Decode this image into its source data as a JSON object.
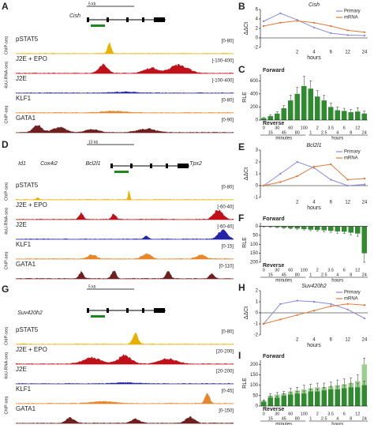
{
  "panels": [
    {
      "label": "A",
      "scale": "5 kb",
      "genes": [
        "Cish"
      ],
      "assays": [
        "ChIP-seq",
        "4sU-RNA-seq",
        "ChIP-seq"
      ],
      "tracks": [
        {
          "name": "pSTAT5",
          "range": "[0-80]",
          "color": "#e8b100"
        },
        {
          "name": "J2E + EPO",
          "range": "[-100-400]",
          "color": "#c0101a"
        },
        {
          "name": "J2E",
          "range": "[-100-400]",
          "color": "#2424a8"
        },
        {
          "name": "KLF1",
          "range": "[0-80]",
          "color": "#e8862a"
        },
        {
          "name": "GATA1",
          "range": "[0-90]",
          "color": "#6e2020"
        }
      ]
    },
    {
      "label": "D",
      "scale": "10 kb",
      "genes": [
        "Id1",
        "Cox4i2",
        "Bcl2l1",
        "Tpx2"
      ],
      "assays": [
        "ChIP-seq",
        "4sU-RNA-seq",
        "ChIP-seq"
      ],
      "tracks": [
        {
          "name": "pSTAT5",
          "range": "[0-80]",
          "color": "#e8b100"
        },
        {
          "name": "J2E + EPO",
          "range": "[-60-40]",
          "color": "#c0101a"
        },
        {
          "name": "J2E",
          "range": "[-60-40]",
          "color": "#2424a8"
        },
        {
          "name": "KLF1",
          "range": "[0-15]",
          "color": "#e8862a"
        },
        {
          "name": "GATA1",
          "range": "[0-110]",
          "color": "#6e2020"
        }
      ]
    },
    {
      "label": "G",
      "scale": "5 kb",
      "genes": [
        "Suv420h2"
      ],
      "assays": [
        "ChIP-seq",
        "4sU-RNA-seq",
        "ChIP-seq"
      ],
      "tracks": [
        {
          "name": "pSTAT5",
          "range": "[0-80]",
          "color": "#e8b100"
        },
        {
          "name": "J2E + EPO",
          "range": "[20-200]",
          "color": "#c0101a"
        },
        {
          "name": "J2E",
          "range": "[20-200]",
          "color": "#2424a8"
        },
        {
          "name": "KLF1",
          "range": "[0-45]",
          "color": "#e8862a"
        },
        {
          "name": "GATA1",
          "range": "[0-150]",
          "color": "#6e2020"
        }
      ]
    }
  ],
  "chart_data": [
    {
      "type": "line",
      "label": "B",
      "title": "Cish",
      "x_label": "hours",
      "y_label": "ΔΔCt",
      "categories": [
        null,
        null,
        "2",
        "4",
        "6",
        "12",
        "24"
      ],
      "series": [
        {
          "name": "Primary",
          "color": "#8a8ae0",
          "values": [
            3.5,
            5.2,
            3.8,
            2.2,
            1.0,
            0.6,
            0.5
          ]
        },
        {
          "name": "mRNA",
          "color": "#e07a3a",
          "values": [
            2.5,
            3.2,
            3.6,
            3.2,
            2.5,
            1.6,
            1.2
          ]
        }
      ],
      "ylim": [
        -2,
        6
      ],
      "yticks": [
        -2,
        0,
        2,
        4,
        6
      ],
      "legend": "upper right"
    },
    {
      "type": "bar",
      "label": "C",
      "forward": "Forward",
      "reverse": "Reverse",
      "y_label": "RLE",
      "group_labels": [
        "minutes",
        "hours"
      ],
      "categories": [
        "0",
        "15",
        "30",
        "45",
        "60",
        "80",
        "100",
        "1",
        "2",
        "2.5",
        "3.5",
        "4",
        "6",
        "8",
        "12",
        "24"
      ],
      "series": [
        {
          "name": null,
          "color": "#2e8b2e",
          "values": [
            30,
            60,
            100,
            180,
            300,
            400,
            520,
            480,
            360,
            300,
            200,
            150,
            140,
            120,
            130,
            100
          ],
          "errors": [
            10,
            20,
            30,
            40,
            80,
            100,
            150,
            120,
            90,
            80,
            60,
            50,
            40,
            40,
            60,
            40
          ]
        }
      ],
      "ylim": [
        0,
        700
      ],
      "yticks": [
        0,
        200,
        400,
        600
      ]
    },
    {
      "type": "line",
      "label": "E",
      "title": "Bcl2l1",
      "x_label": "hours",
      "y_label": "ΔΔCt",
      "categories": [
        null,
        null,
        "2",
        "4",
        "6",
        "12",
        "24"
      ],
      "series": [
        {
          "name": "Primary",
          "color": "#8a8ae0",
          "values": [
            0,
            1,
            2,
            1.5,
            0.5,
            0,
            0.1
          ]
        },
        {
          "name": "mRNA",
          "color": "#e07a3a",
          "values": [
            0,
            0.3,
            0.8,
            1.6,
            1.8,
            0.5,
            0.6
          ]
        }
      ],
      "ylim": [
        -1,
        3
      ],
      "yticks": [
        -1,
        0,
        1,
        2,
        3
      ],
      "legend": "upper right"
    },
    {
      "type": "bar",
      "label": "F",
      "forward": "Forward",
      "reverse": "Reverse",
      "y_label": "RLE",
      "group_labels": [
        "minutes",
        "hours"
      ],
      "categories": [
        "0",
        "15",
        "30",
        "45",
        "60",
        "80",
        "100",
        "1",
        "2",
        "2.5",
        "3.5",
        "4",
        "6",
        "8",
        "12",
        "24"
      ],
      "series": [
        {
          "name": null,
          "color": "#2e8b2e",
          "values": [
            -2,
            -3,
            -5,
            -8,
            -10,
            -12,
            -15,
            -18,
            -20,
            -22,
            -25,
            -28,
            -30,
            -35,
            -40,
            -150
          ],
          "errors": [
            1,
            2,
            2,
            3,
            4,
            4,
            5,
            6,
            6,
            8,
            8,
            10,
            10,
            12,
            15,
            50
          ]
        }
      ],
      "ylim": [
        -200,
        20
      ],
      "yticks": [
        {
          "value": 0,
          "label": "0"
        },
        {
          "value": -50,
          "label": "50"
        },
        {
          "value": -100,
          "label": "100"
        },
        {
          "value": -150,
          "label": "150"
        },
        {
          "value": -200,
          "label": "200"
        }
      ]
    },
    {
      "type": "line",
      "label": "H",
      "title": "Suv420h2",
      "x_label": "hours",
      "y_label": "ΔΔCt",
      "categories": [
        null,
        null,
        "2",
        "4",
        "6",
        "12",
        "24"
      ],
      "series": [
        {
          "name": "Primary",
          "color": "#8a8ae0",
          "values": [
            -1,
            0.8,
            1.1,
            1,
            0.8,
            0.3,
            -0.5
          ]
        },
        {
          "name": "mRNA",
          "color": "#e07a3a",
          "values": [
            -1,
            -0.6,
            -0.2,
            0.2,
            0.6,
            0.8,
            0.7
          ]
        }
      ],
      "ylim": [
        -2,
        2
      ],
      "yticks": [
        -2,
        -1,
        0,
        1,
        2
      ],
      "legend": "upper right"
    },
    {
      "type": "bar",
      "label": "I",
      "forward": "Forward",
      "reverse": "Reverse",
      "y_label": "RLE",
      "group_labels": [
        "minutes",
        "hours"
      ],
      "categories": [
        "0",
        "15",
        "30",
        "45",
        "60",
        "80",
        "100",
        "1",
        "2",
        "2.5",
        "3.5",
        "4",
        "6",
        "8",
        "12",
        "24"
      ],
      "series": [
        {
          "name": null,
          "color": "#9ccf8e",
          "values": [
            25,
            50,
            55,
            60,
            70,
            75,
            80,
            85,
            90,
            90,
            95,
            100,
            105,
            110,
            120,
            200
          ],
          "errors": [
            5,
            10,
            10,
            10,
            15,
            15,
            20,
            20,
            20,
            20,
            20,
            25,
            25,
            25,
            30,
            30
          ]
        },
        {
          "name": null,
          "color": "#2e8b2e",
          "values": [
            20,
            40,
            40,
            50,
            55,
            60,
            60,
            70,
            70,
            75,
            80,
            80,
            85,
            90,
            90,
            100
          ],
          "errors": [
            5,
            8,
            8,
            10,
            10,
            10,
            12,
            12,
            12,
            15,
            15,
            15,
            15,
            20,
            20,
            20
          ]
        }
      ],
      "ylim": [
        0,
        220
      ],
      "yticks": [
        0,
        50,
        100,
        150,
        200
      ]
    }
  ]
}
